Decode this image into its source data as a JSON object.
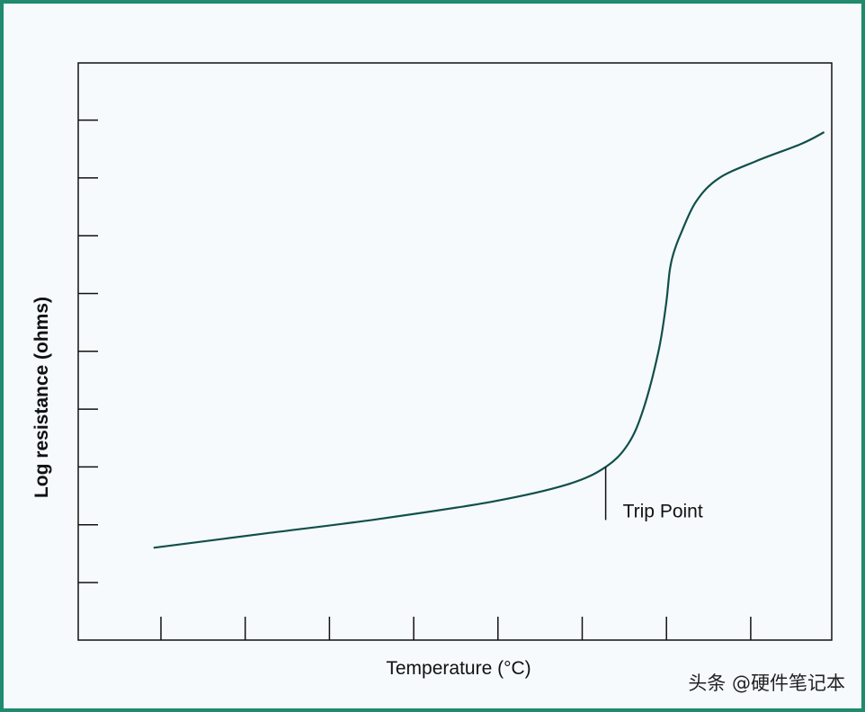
{
  "chart_data": {
    "type": "line",
    "title": "",
    "xlabel": "Temperature (°C)",
    "ylabel": "Log resistance (ohms)",
    "x_tick_count": 8,
    "y_tick_count": 9,
    "xlim": [
      0,
      100
    ],
    "ylim": [
      0,
      100
    ],
    "grid": false,
    "tick_labels": false,
    "series": [
      {
        "color": "#114f4b",
        "points": [
          [
            10,
            16
          ],
          [
            25,
            18.5
          ],
          [
            40,
            21
          ],
          [
            55,
            24
          ],
          [
            65,
            27
          ],
          [
            70,
            30
          ],
          [
            73,
            34
          ],
          [
            75,
            40
          ],
          [
            77,
            50
          ],
          [
            78,
            58
          ],
          [
            78.5,
            64
          ],
          [
            79,
            67
          ],
          [
            80,
            70.5
          ],
          [
            82,
            76
          ],
          [
            85,
            80
          ],
          [
            90,
            83
          ],
          [
            96,
            86
          ],
          [
            99,
            88
          ]
        ]
      }
    ],
    "annotations": [
      {
        "text": "Trip Point",
        "x": 70,
        "y": 30
      }
    ]
  },
  "watermark": "头条 @硬件笔记本",
  "colors": {
    "frame": "#1f8a6e",
    "background": "#f6fafd",
    "axes": "#111111"
  }
}
